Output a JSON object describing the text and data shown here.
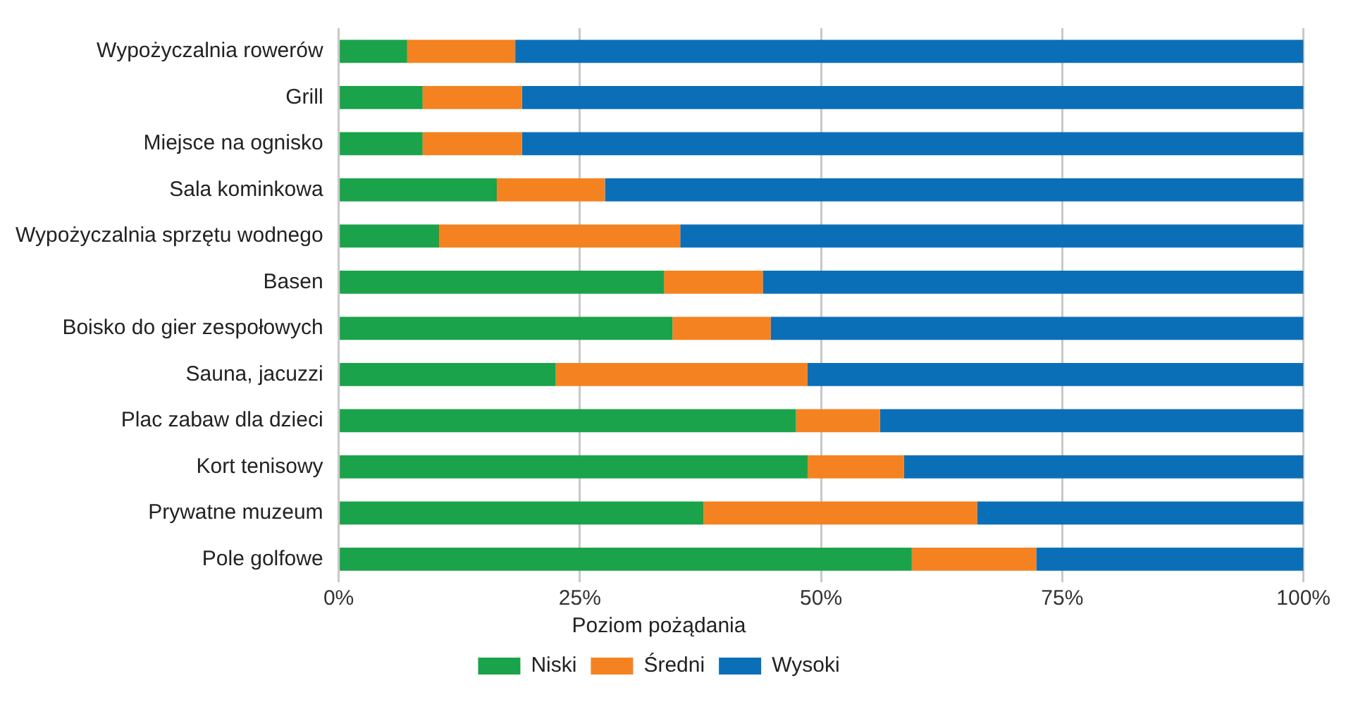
{
  "chart_data": {
    "type": "bar",
    "orientation": "horizontal",
    "stacked": true,
    "legend_title": "Poziom pożądania",
    "legend": "bottom",
    "grid": "x",
    "categories": [
      "Wypożyczalnia rowerów",
      "Grill",
      "Miejsce na ognisko",
      "Sala kominkowa",
      "Wypożyczalnia sprzętu wodnego",
      "Basen",
      "Boisko do gier zespołowych",
      "Sauna, jacuzzi",
      "Plac zabaw dla dzieci",
      "Kort tenisowy",
      "Prywatne muzeum",
      "Pole golfowe"
    ],
    "xlim": [
      0,
      100
    ],
    "xticks": [
      {
        "value": 0,
        "label": "0%"
      },
      {
        "value": 25,
        "label": "25%"
      },
      {
        "value": 50,
        "label": "50%"
      },
      {
        "value": 75,
        "label": "75%"
      },
      {
        "value": 100,
        "label": "100%"
      }
    ],
    "series": [
      {
        "name": "Niski",
        "color": "#1aa34a",
        "values": [
          7.1,
          8.7,
          8.7,
          16.4,
          10.4,
          33.7,
          34.6,
          22.5,
          47.4,
          48.6,
          37.8,
          59.4
        ]
      },
      {
        "name": "Średni",
        "color": "#f58220",
        "values": [
          11.2,
          10.3,
          10.3,
          11.2,
          25,
          10.3,
          10.2,
          26.1,
          8.7,
          10,
          28.4,
          12.9
        ]
      },
      {
        "name": "Wysoki",
        "color": "#0b6fb8",
        "values": [
          81.7,
          81,
          81,
          72.4,
          64.6,
          56,
          55.2,
          51.4,
          43.9,
          41.4,
          33.8,
          27.7
        ]
      }
    ]
  }
}
